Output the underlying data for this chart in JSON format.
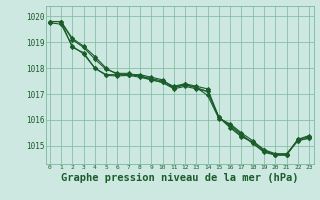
{
  "background_color": "#cce8e0",
  "grid_color": "#7ab8a0",
  "line_color": "#1a5c2a",
  "xlabel": "Graphe pression niveau de la mer (hPa)",
  "xlabel_fontsize": 7.5,
  "ytick_labels": [
    1015,
    1016,
    1017,
    1018,
    1019,
    1020
  ],
  "xtick_labels": [
    0,
    1,
    2,
    3,
    4,
    5,
    6,
    7,
    8,
    9,
    10,
    11,
    12,
    13,
    14,
    15,
    16,
    17,
    18,
    19,
    20,
    21,
    22,
    23
  ],
  "ylim": [
    1014.3,
    1020.4
  ],
  "xlim": [
    -0.3,
    23.4
  ],
  "series": [
    [
      1019.8,
      1019.8,
      1019.15,
      1018.85,
      1018.45,
      1018.0,
      1017.75,
      1017.75,
      1017.75,
      1017.65,
      1017.55,
      1017.25,
      1017.35,
      1017.25,
      1016.95,
      1016.05,
      1015.85,
      1015.5,
      1015.2,
      1014.85,
      1014.65,
      1014.65,
      1015.2,
      1015.3
    ],
    [
      1019.8,
      1019.8,
      1019.1,
      1018.8,
      1018.35,
      1017.95,
      1017.8,
      1017.8,
      1017.7,
      1017.55,
      1017.45,
      1017.2,
      1017.3,
      1017.2,
      1017.1,
      1016.1,
      1015.7,
      1015.35,
      1015.15,
      1014.85,
      1014.7,
      1014.7,
      1015.2,
      1015.3
    ],
    [
      1019.8,
      1019.8,
      1018.8,
      1018.6,
      1018.0,
      1017.75,
      1017.75,
      1017.75,
      1017.7,
      1017.6,
      1017.5,
      1017.3,
      1017.4,
      1017.3,
      1017.2,
      1016.1,
      1015.8,
      1015.45,
      1015.1,
      1014.8,
      1014.65,
      1014.65,
      1015.25,
      1015.4
    ],
    [
      1019.75,
      1019.7,
      1018.85,
      1018.55,
      1018.0,
      1017.72,
      1017.7,
      1017.72,
      1017.65,
      1017.55,
      1017.45,
      1017.25,
      1017.38,
      1017.25,
      1017.1,
      1016.1,
      1015.75,
      1015.4,
      1015.1,
      1014.75,
      1014.65,
      1014.65,
      1015.25,
      1015.35
    ]
  ],
  "marker": "D",
  "markersize": 2.2,
  "linewidth": 0.8
}
